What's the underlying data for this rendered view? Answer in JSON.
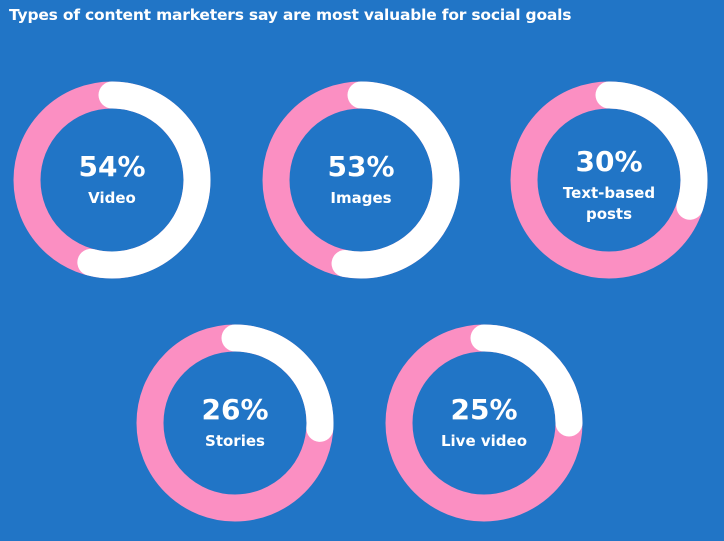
{
  "colors": {
    "background": "#2175c6",
    "highlight": "#ffffff",
    "remainder": "#fb8fc2"
  },
  "chart_data": {
    "type": "donut",
    "title": "Types of content marketers say are most valuable for social goals",
    "unit": "%",
    "items": [
      {
        "value": 54,
        "label": "54%",
        "name_lines": [
          "Video"
        ]
      },
      {
        "value": 53,
        "label": "53%",
        "name_lines": [
          "Images"
        ]
      },
      {
        "value": 30,
        "label": "30%",
        "name_lines": [
          "Text-based",
          "posts"
        ]
      },
      {
        "value": 26,
        "label": "26%",
        "name_lines": [
          "Stories"
        ]
      },
      {
        "value": 25,
        "label": "25%",
        "name_lines": [
          "Live video"
        ]
      }
    ]
  }
}
